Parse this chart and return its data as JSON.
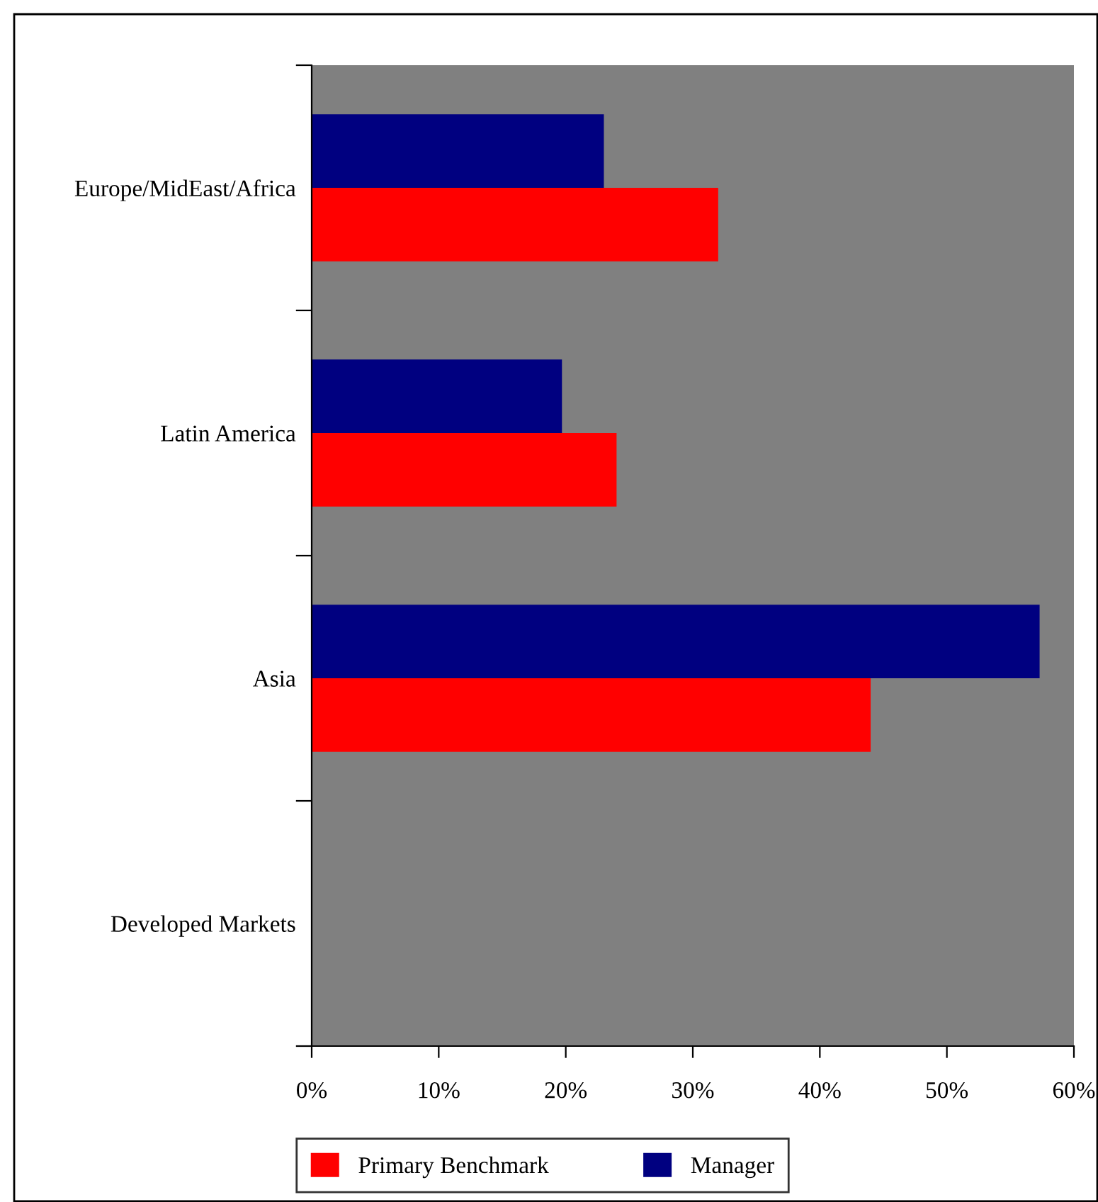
{
  "chart_data": {
    "type": "bar",
    "orientation": "horizontal",
    "categories": [
      "Europe/MidEast/Africa",
      "Latin America",
      "Asia",
      "Developed Markets"
    ],
    "series": [
      {
        "name": "Primary Benchmark",
        "color": "#ff0000",
        "values": [
          32,
          24,
          44,
          0
        ]
      },
      {
        "name": "Manager",
        "color": "#000080",
        "values": [
          23,
          19.7,
          57.3,
          0
        ]
      }
    ],
    "xlim": [
      0,
      60
    ],
    "xticks": [
      {
        "value": 0,
        "label": "0%"
      },
      {
        "value": 10,
        "label": "10%"
      },
      {
        "value": 20,
        "label": "20%"
      },
      {
        "value": 30,
        "label": "30%"
      },
      {
        "value": 40,
        "label": "40%"
      },
      {
        "value": 50,
        "label": "50%"
      },
      {
        "value": 60,
        "label": "60%"
      }
    ],
    "grid": false,
    "legend": "bottom"
  }
}
